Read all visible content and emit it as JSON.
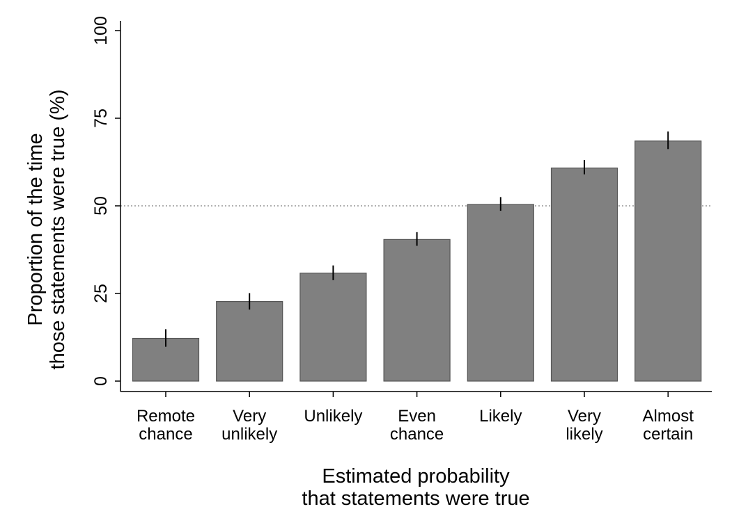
{
  "chart_data": {
    "type": "bar",
    "xlabel": [
      "Estimated probability",
      "that statements were true"
    ],
    "ylabel": [
      "Proportion of the time",
      "those statements were true (%)"
    ],
    "ylim": [
      0,
      100
    ],
    "yticks": [
      "0",
      "25",
      "50",
      "75",
      "100"
    ],
    "reference_line": 50,
    "grid": false,
    "legend": "none",
    "bar_color": "#808080",
    "bar_edge_color": "#555555",
    "categories": [
      [
        "Remote",
        "chance"
      ],
      [
        "Very",
        "unlikely"
      ],
      [
        "Unlikely"
      ],
      [
        "Even",
        "chance"
      ],
      [
        "Likely"
      ],
      [
        "Very",
        "likely"
      ],
      [
        "Almost",
        "certain"
      ]
    ],
    "values": [
      12.2,
      22.7,
      30.8,
      40.4,
      50.4,
      60.8,
      68.5
    ],
    "error_low": [
      9.8,
      20.4,
      28.8,
      38.6,
      48.6,
      59.0,
      66.2
    ],
    "error_high": [
      14.8,
      25.1,
      33.0,
      42.5,
      52.5,
      63.1,
      71.2
    ]
  }
}
